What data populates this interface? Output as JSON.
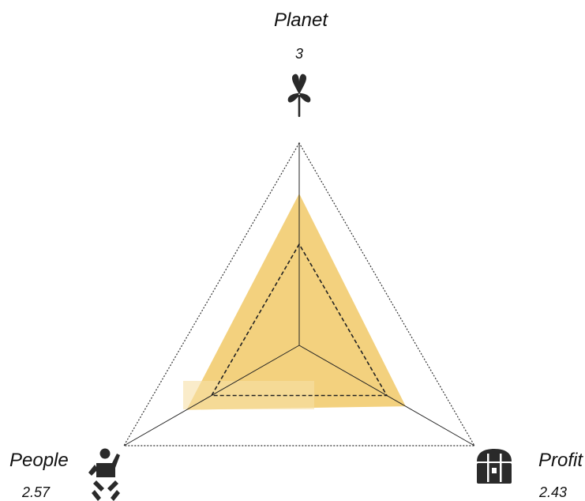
{
  "chart_data": {
    "type": "radar",
    "axes": [
      {
        "name": "Planet",
        "value": "3",
        "icon": "plant-icon"
      },
      {
        "name": "People",
        "value": "2.57",
        "icon": "baby-icon"
      },
      {
        "name": "Profit",
        "value": "2.43",
        "icon": "treasure-chest-icon"
      }
    ],
    "series": [
      {
        "values": [
          3,
          2.57,
          2.43
        ],
        "color": "#f3d17e"
      }
    ],
    "reference_level": 2,
    "max": 4,
    "grid": true
  }
}
